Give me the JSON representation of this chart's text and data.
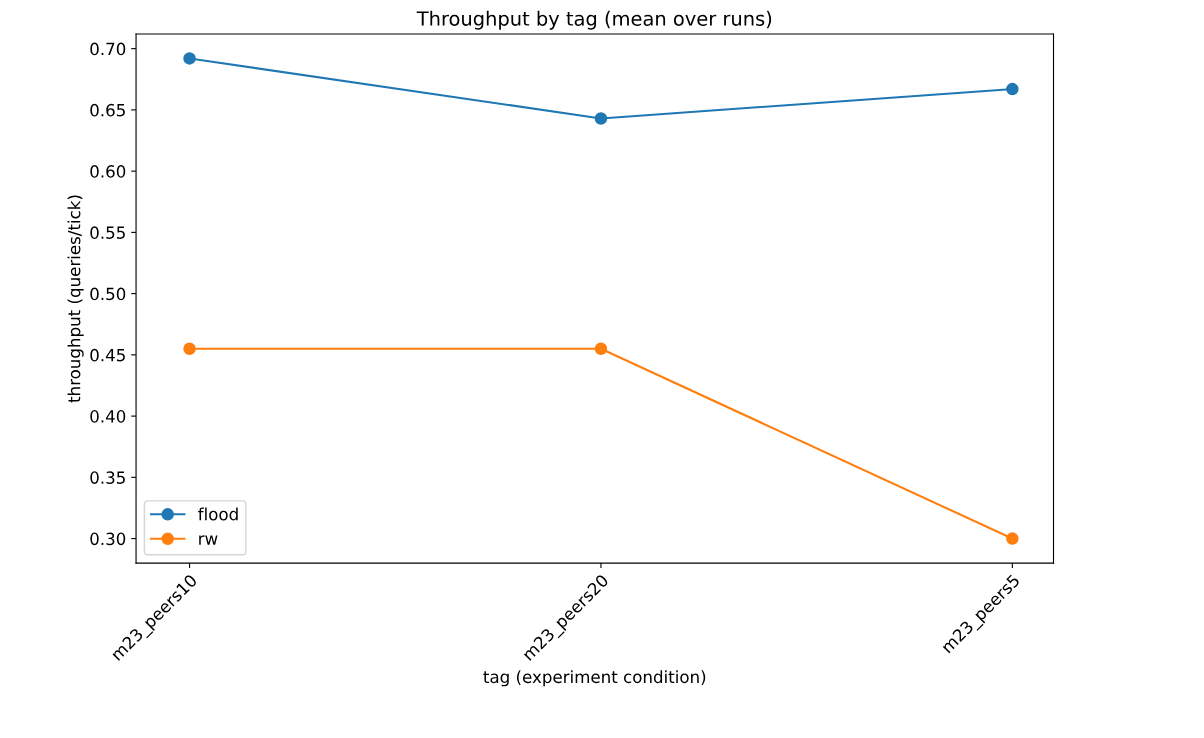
{
  "chart_data": {
    "type": "line",
    "title": "Throughput by tag (mean over runs)",
    "xlabel": "tag (experiment condition)",
    "ylabel": "throughput (queries/tick)",
    "categories": [
      "m23_peers10",
      "m23_peers20",
      "m23_peers5"
    ],
    "series": [
      {
        "name": "flood",
        "color": "#1f77b4",
        "values": [
          0.692,
          0.643,
          0.667
        ]
      },
      {
        "name": "rw",
        "color": "#ff7f0e",
        "values": [
          0.455,
          0.455,
          0.3
        ]
      }
    ],
    "ylim": [
      0.28,
      0.712
    ],
    "yticks": [
      {
        "value": 0.3,
        "label": "0.30"
      },
      {
        "value": 0.35,
        "label": "0.35"
      },
      {
        "value": 0.4,
        "label": "0.40"
      },
      {
        "value": 0.45,
        "label": "0.45"
      },
      {
        "value": 0.5,
        "label": "0.50"
      },
      {
        "value": 0.55,
        "label": "0.55"
      },
      {
        "value": 0.6,
        "label": "0.60"
      },
      {
        "value": 0.65,
        "label": "0.65"
      },
      {
        "value": 0.7,
        "label": "0.70"
      }
    ],
    "marker": "circle",
    "legend": "lower left",
    "grid": false
  }
}
